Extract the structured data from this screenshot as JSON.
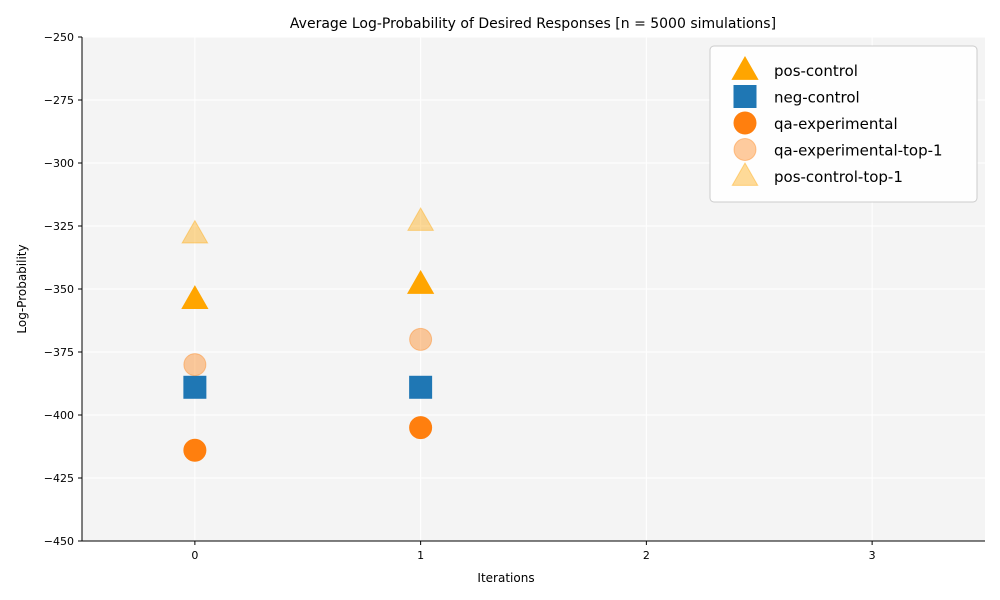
{
  "chart_data": {
    "type": "scatter",
    "title": "Average Log-Probability of Desired Responses [n = 5000 simulations]",
    "xlabel": "Iterations",
    "ylabel": "Log-Probability",
    "xlim": [
      -0.5,
      3.5
    ],
    "ylim": [
      -450,
      -250
    ],
    "xticks": [
      0,
      1,
      2,
      3
    ],
    "yticks": [
      -450,
      -425,
      -400,
      -375,
      -350,
      -325,
      -300,
      -275,
      -250
    ],
    "grid": true,
    "legend_position": "top-right",
    "series": [
      {
        "name": "pos-control",
        "marker": "triangle",
        "color": "#FFA500",
        "opacity": 1.0,
        "x": [
          0,
          1
        ],
        "y": [
          -354,
          -348
        ]
      },
      {
        "name": "neg-control",
        "marker": "square",
        "color": "#1F77B4",
        "opacity": 1.0,
        "x": [
          0,
          1
        ],
        "y": [
          -389,
          -389
        ]
      },
      {
        "name": "qa-experimental",
        "marker": "circle",
        "color": "#FF7F0E",
        "opacity": 1.0,
        "x": [
          0,
          1
        ],
        "y": [
          -414,
          -405
        ]
      },
      {
        "name": "qa-experimental-top-1",
        "marker": "circle",
        "color": "#FF7F0E",
        "opacity": 0.4,
        "x": [
          0,
          1
        ],
        "y": [
          -380,
          -370
        ]
      },
      {
        "name": "pos-control-top-1",
        "marker": "triangle",
        "color": "#FFA500",
        "opacity": 0.4,
        "x": [
          0,
          1
        ],
        "y": [
          -328,
          -323
        ]
      }
    ]
  }
}
